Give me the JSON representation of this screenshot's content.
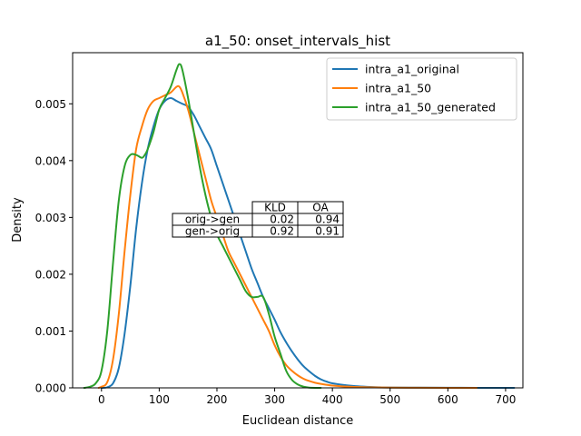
{
  "chart_data": {
    "type": "line",
    "title": "a1_50: onset_intervals_hist",
    "xlabel": "Euclidean distance",
    "ylabel": "Density",
    "xlim": [
      -50,
      730
    ],
    "ylim": [
      0,
      0.0059
    ],
    "x_ticks": [
      0,
      100,
      200,
      300,
      400,
      500,
      600,
      700
    ],
    "x_tick_labels": [
      "0",
      "100",
      "200",
      "300",
      "400",
      "500",
      "600",
      "700"
    ],
    "y_ticks": [
      0,
      0.001,
      0.002,
      0.003,
      0.004,
      0.005
    ],
    "y_tick_labels": [
      "0.000",
      "0.001",
      "0.002",
      "0.003",
      "0.004",
      "0.005"
    ],
    "grid": false,
    "legend_position": "upper right",
    "series": [
      {
        "name": "intra_a1_original",
        "color": "#1f77b4",
        "x": [
          0,
          10,
          20,
          30,
          40,
          50,
          60,
          70,
          80,
          90,
          100,
          110,
          120,
          130,
          140,
          150,
          160,
          170,
          180,
          190,
          200,
          210,
          220,
          230,
          240,
          250,
          260,
          270,
          280,
          290,
          300,
          310,
          320,
          330,
          340,
          350,
          360,
          370,
          380,
          390,
          400,
          420,
          440,
          460,
          480,
          500,
          550,
          600,
          650,
          700,
          715
        ],
        "y": [
          0.0,
          1e-05,
          8e-05,
          0.00035,
          0.00095,
          0.0018,
          0.0028,
          0.0036,
          0.0042,
          0.0046,
          0.0049,
          0.00505,
          0.0051,
          0.00505,
          0.005,
          0.00495,
          0.0048,
          0.0046,
          0.0044,
          0.0042,
          0.0039,
          0.0036,
          0.0033,
          0.003,
          0.0027,
          0.0024,
          0.0021,
          0.00185,
          0.0016,
          0.0014,
          0.0012,
          0.00098,
          0.0008,
          0.00064,
          0.0005,
          0.00038,
          0.00029,
          0.00021,
          0.00015,
          0.00011,
          8e-05,
          5e-05,
          3e-05,
          1.8e-05,
          1e-05,
          6e-06,
          3e-06,
          2e-06,
          1e-06,
          5e-07,
          0.0
        ]
      },
      {
        "name": "intra_a1_50",
        "color": "#ff7f0e",
        "x": [
          -5,
          0,
          10,
          20,
          30,
          40,
          50,
          60,
          70,
          80,
          90,
          100,
          110,
          120,
          130,
          135,
          140,
          150,
          160,
          170,
          180,
          190,
          200,
          210,
          220,
          230,
          240,
          250,
          260,
          270,
          280,
          290,
          300,
          310,
          320,
          330,
          340,
          350,
          360,
          370,
          380,
          400,
          430,
          460,
          500,
          550,
          600,
          650
        ],
        "y": [
          0.0,
          2e-05,
          0.0001,
          0.0005,
          0.0013,
          0.0024,
          0.0034,
          0.0042,
          0.0046,
          0.0049,
          0.00505,
          0.0051,
          0.00515,
          0.0052,
          0.0053,
          0.0053,
          0.0052,
          0.0049,
          0.0045,
          0.0041,
          0.0037,
          0.0033,
          0.003,
          0.0027,
          0.0024,
          0.0022,
          0.002,
          0.0018,
          0.0016,
          0.0014,
          0.0012,
          0.001,
          0.00075,
          0.00055,
          0.0004,
          0.0003,
          0.00022,
          0.00016,
          0.00012,
          9e-05,
          7e-05,
          4e-05,
          2e-05,
          1e-05,
          5e-06,
          2e-06,
          1e-06,
          0.0
        ]
      },
      {
        "name": "intra_a1_50_generated",
        "color": "#2ca02c",
        "x": [
          -30,
          -20,
          -10,
          0,
          10,
          20,
          30,
          40,
          50,
          60,
          70,
          75,
          80,
          90,
          100,
          110,
          120,
          130,
          135,
          140,
          150,
          160,
          170,
          180,
          190,
          200,
          210,
          220,
          230,
          240,
          250,
          260,
          270,
          280,
          290,
          300,
          310,
          320,
          330,
          340,
          350,
          360,
          380
        ],
        "y": [
          0.0,
          2e-05,
          8e-05,
          0.0003,
          0.001,
          0.0022,
          0.0033,
          0.0039,
          0.0041,
          0.0041,
          0.00405,
          0.0041,
          0.0042,
          0.0045,
          0.0049,
          0.0051,
          0.0053,
          0.0056,
          0.0057,
          0.0056,
          0.0051,
          0.0045,
          0.0039,
          0.0034,
          0.003,
          0.0027,
          0.0025,
          0.0023,
          0.0021,
          0.0019,
          0.0017,
          0.0016,
          0.0016,
          0.0016,
          0.0013,
          0.0009,
          0.0006,
          0.0003,
          0.00014,
          6e-05,
          2e-05,
          5e-06,
          0.0
        ]
      }
    ],
    "table": {
      "col_labels": [
        "KLD",
        "OA"
      ],
      "row_labels": [
        "orig->gen",
        "gen->orig"
      ],
      "cells": [
        [
          "0.02",
          "0.94"
        ],
        [
          "0.92",
          "0.91"
        ]
      ]
    }
  }
}
